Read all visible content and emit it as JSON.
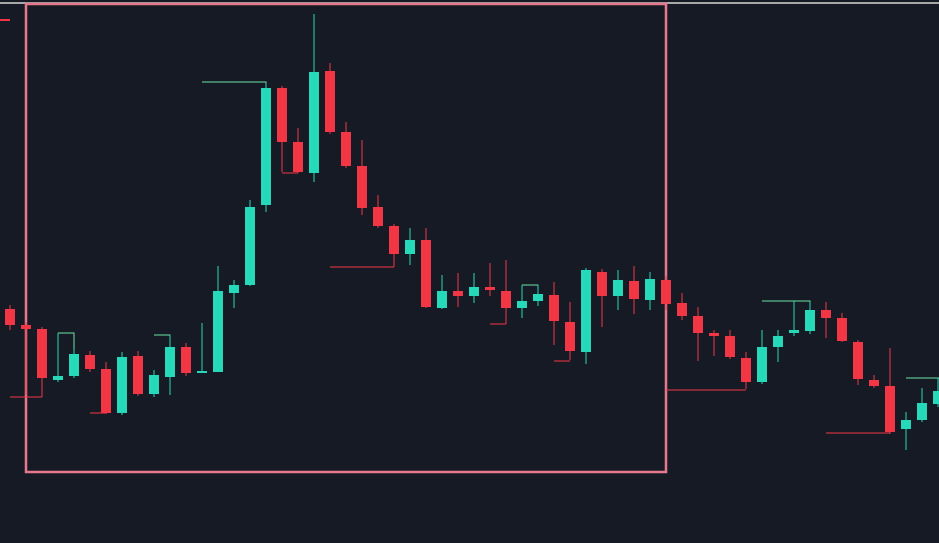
{
  "chart_data": {
    "type": "candlestick",
    "ylim": [
      0,
      543
    ],
    "up_color": "#26d9b8",
    "down_color": "#f23645",
    "open": [
      234,
      218,
      214,
      163,
      167,
      188,
      174,
      130,
      187,
      149,
      166,
      196,
      170,
      171,
      250,
      258,
      338,
      455,
      401,
      370,
      472,
      411,
      377,
      336,
      317,
      289,
      303,
      235,
      252,
      247,
      256,
      252,
      235,
      242,
      248,
      221,
      191,
      271,
      247,
      262,
      243,
      263,
      240,
      227,
      210,
      207,
      185,
      161,
      196,
      210,
      212,
      233,
      225,
      201,
      163,
      157,
      114,
      123,
      139
    ],
    "high": [
      238,
      221,
      216,
      210,
      193,
      192,
      181,
      191,
      192,
      173,
      208,
      200,
      220,
      277,
      263,
      343,
      460,
      457,
      415,
      529,
      480,
      421,
      403,
      348,
      319,
      315,
      315,
      268,
      270,
      270,
      280,
      283,
      258,
      258,
      261,
      241,
      275,
      274,
      273,
      277,
      271,
      267,
      250,
      236,
      213,
      213,
      191,
      213,
      213,
      242,
      241,
      241,
      230,
      203,
      168,
      195,
      131,
      155,
      165
    ],
    "low": [
      213,
      148,
      146,
      161,
      165,
      171,
      129,
      128,
      147,
      146,
      148,
      167,
      170,
      171,
      235,
      257,
      331,
      371,
      370,
      361,
      409,
      375,
      328,
      315,
      276,
      278,
      235,
      234,
      236,
      240,
      247,
      219,
      225,
      237,
      198,
      183,
      179,
      216,
      233,
      229,
      233,
      233,
      223,
      182,
      187,
      184,
      154,
      159,
      181,
      207,
      209,
      205,
      201,
      158,
      155,
      109,
      93,
      121,
      136
    ],
    "close": [
      218,
      214,
      165,
      167,
      189,
      174,
      130,
      186,
      149,
      168,
      196,
      170,
      172,
      252,
      258,
      336,
      455,
      401,
      371,
      471,
      411,
      377,
      335,
      317,
      289,
      303,
      236,
      252,
      247,
      256,
      253,
      235,
      242,
      249,
      222,
      192,
      273,
      247,
      263,
      244,
      264,
      239,
      227,
      210,
      207,
      186,
      161,
      196,
      207,
      213,
      233,
      225,
      202,
      164,
      157,
      111,
      123,
      140,
      152
    ]
  }
}
